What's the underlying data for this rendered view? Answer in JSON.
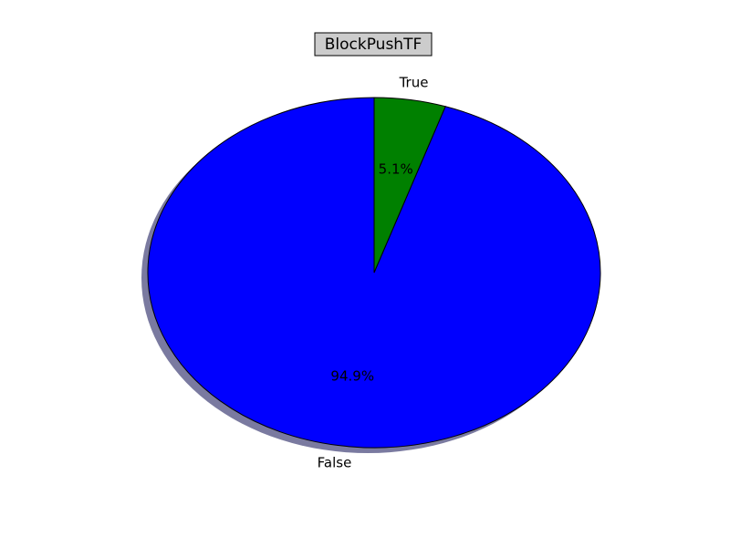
{
  "chart_data": {
    "type": "pie",
    "title": "BlockPushTF",
    "slices": [
      {
        "label": "False",
        "value": 94.9,
        "pct_label": "94.9%",
        "color": "#0000ff"
      },
      {
        "label": "True",
        "value": 5.1,
        "pct_label": "5.1%",
        "color": "#008000"
      }
    ],
    "shadow": true,
    "shadow_color": "#7a7aa0",
    "title_box_color": "#cccccc",
    "start_angle_deg": 90,
    "direction": "counterclockwise"
  }
}
